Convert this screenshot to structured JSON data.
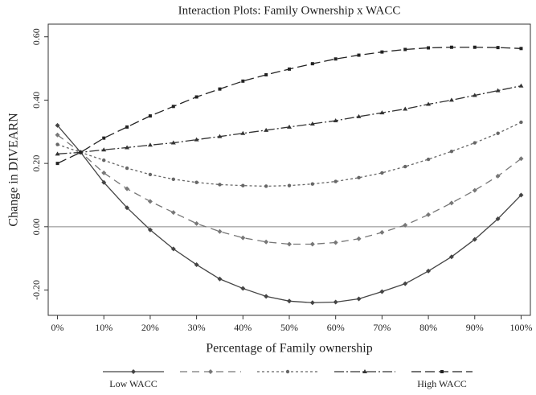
{
  "chart_data": {
    "type": "line",
    "title": "Interaction Plots: Family Ownership x WACC",
    "x_label": "Percentage of Family ownership",
    "y_label": "Change in DIVEARN",
    "x": [
      0,
      5,
      10,
      15,
      20,
      25,
      30,
      35,
      40,
      45,
      50,
      55,
      60,
      65,
      70,
      75,
      80,
      85,
      90,
      95,
      100
    ],
    "xlim": [
      -2,
      102
    ],
    "xticks": [
      {
        "value": 0,
        "label": "0%"
      },
      {
        "value": 10,
        "label": "10%"
      },
      {
        "value": 20,
        "label": "20%"
      },
      {
        "value": 30,
        "label": "30%"
      },
      {
        "value": 40,
        "label": "40%"
      },
      {
        "value": 50,
        "label": "50%"
      },
      {
        "value": 60,
        "label": "60%"
      },
      {
        "value": 70,
        "label": "70%"
      },
      {
        "value": 80,
        "label": "80%"
      },
      {
        "value": 90,
        "label": "90%"
      },
      {
        "value": 100,
        "label": "100%"
      }
    ],
    "ylim": [
      -0.28,
      0.64
    ],
    "yticks": [
      {
        "value": -0.2,
        "label": "-0.20"
      },
      {
        "value": 0,
        "label": "0.00"
      },
      {
        "value": 0.2,
        "label": "0.20"
      },
      {
        "value": 0.4,
        "label": "0.40"
      },
      {
        "value": 0.6,
        "label": "0.60"
      }
    ],
    "reference_line": 0,
    "series": [
      {
        "name": "Low WACC",
        "color": "#444444",
        "dash": "",
        "marker": "diamond",
        "values": [
          0.32,
          0.235,
          0.14,
          0.06,
          -0.01,
          -0.07,
          -0.12,
          -0.165,
          -0.195,
          -0.22,
          -0.235,
          -0.24,
          -0.238,
          -0.228,
          -0.205,
          -0.18,
          -0.14,
          -0.095,
          -0.04,
          0.025,
          0.1
        ]
      },
      {
        "color": "#777777",
        "dash": "9 6",
        "marker": "diamond",
        "values": [
          0.29,
          0.235,
          0.17,
          0.12,
          0.08,
          0.045,
          0.01,
          -0.015,
          -0.035,
          -0.048,
          -0.055,
          -0.055,
          -0.05,
          -0.038,
          -0.018,
          0.005,
          0.038,
          0.075,
          0.115,
          0.16,
          0.215
        ]
      },
      {
        "color": "#666666",
        "dash": "3 3",
        "marker": "circle",
        "values": [
          0.26,
          0.235,
          0.21,
          0.185,
          0.165,
          0.15,
          0.14,
          0.133,
          0.13,
          0.128,
          0.13,
          0.135,
          0.143,
          0.155,
          0.17,
          0.19,
          0.213,
          0.238,
          0.265,
          0.295,
          0.33
        ]
      },
      {
        "color": "#333333",
        "dash": "12 3 2 3",
        "marker": "triangle",
        "values": [
          0.23,
          0.235,
          0.243,
          0.25,
          0.258,
          0.265,
          0.275,
          0.285,
          0.295,
          0.305,
          0.315,
          0.325,
          0.335,
          0.348,
          0.36,
          0.372,
          0.387,
          0.4,
          0.415,
          0.43,
          0.445
        ]
      },
      {
        "name": "High WACC",
        "color": "#222222",
        "dash": "12 5",
        "marker": "square",
        "values": [
          0.2,
          0.235,
          0.28,
          0.315,
          0.35,
          0.38,
          0.41,
          0.435,
          0.46,
          0.48,
          0.498,
          0.515,
          0.53,
          0.542,
          0.552,
          0.56,
          0.565,
          0.567,
          0.567,
          0.566,
          0.563
        ]
      }
    ]
  }
}
